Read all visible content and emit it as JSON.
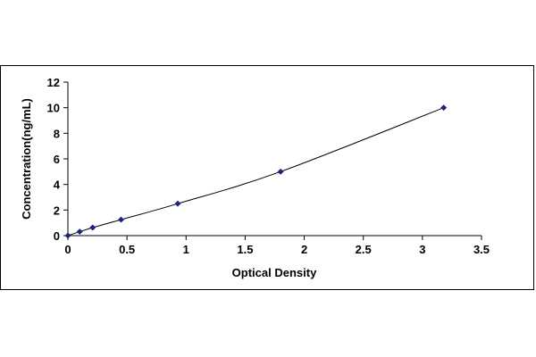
{
  "chart_data": {
    "type": "scatter",
    "xlabel": "Optical Density",
    "ylabel": "Concentration(ng/mL)",
    "xlim": [
      0,
      3.5
    ],
    "ylim": [
      0,
      12
    ],
    "x_ticks": [
      "0",
      "0.5",
      "1",
      "1.5",
      "2",
      "2.5",
      "3",
      "3.5"
    ],
    "y_ticks": [
      "0",
      "2",
      "4",
      "6",
      "8",
      "10",
      "12"
    ],
    "grid": false,
    "legend": "none",
    "series": [
      {
        "points": [
          {
            "x": 0.0,
            "y": 0.0
          },
          {
            "x": 0.1,
            "y": 0.31
          },
          {
            "x": 0.21,
            "y": 0.63
          },
          {
            "x": 0.45,
            "y": 1.25
          },
          {
            "x": 0.93,
            "y": 2.5
          },
          {
            "x": 1.8,
            "y": 5.0
          },
          {
            "x": 3.18,
            "y": 10.0
          }
        ],
        "marker_color": "#1a237e",
        "line_color": "#000000",
        "fit": "curve"
      }
    ]
  }
}
